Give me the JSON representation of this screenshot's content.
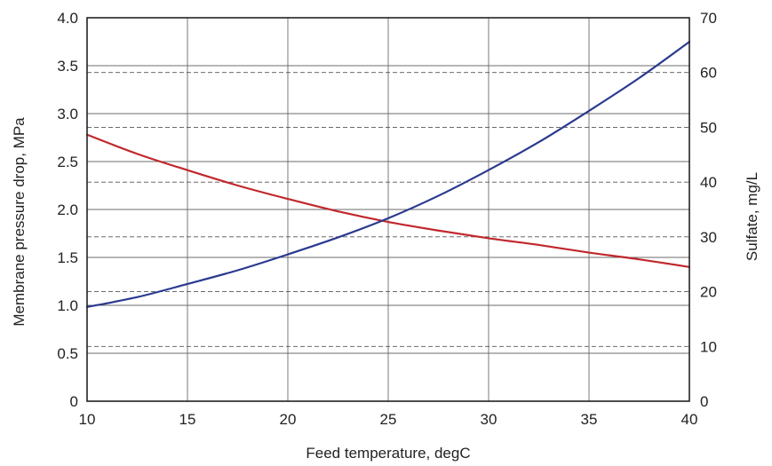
{
  "chart_data": {
    "type": "line",
    "title": "",
    "xlabel": "Feed temperature, degC",
    "ylabel_left": "Membrane pressure drop, MPa",
    "ylabel_right": "Sulfate, mg/L",
    "xlim": [
      10,
      40
    ],
    "ylim_left": [
      0,
      4.0
    ],
    "ylim_right": [
      0,
      70
    ],
    "x_ticks": [
      10,
      15,
      20,
      25,
      30,
      35,
      40
    ],
    "x_tick_labels": [
      "10",
      "15",
      "20",
      "25",
      "30",
      "35",
      "40"
    ],
    "y_left_ticks": [
      0,
      0.5,
      1.0,
      1.5,
      2.0,
      2.5,
      3.0,
      3.5,
      4.0
    ],
    "y_left_tick_labels": [
      "0",
      "0.5",
      "1.0",
      "1.5",
      "2.0",
      "2.5",
      "3.0",
      "3.5",
      "4.0"
    ],
    "y_right_ticks": [
      0,
      10,
      20,
      30,
      40,
      50,
      60,
      70
    ],
    "y_right_tick_labels": [
      "0",
      "10",
      "20",
      "30",
      "40",
      "50",
      "60",
      "70"
    ],
    "grid": true,
    "series": [
      {
        "axis": "left",
        "color": "#c0282d",
        "x": [
          10,
          12.5,
          15,
          17.5,
          20,
          22.5,
          25,
          27.5,
          30,
          32.5,
          35,
          37.5,
          40
        ],
        "y": [
          2.78,
          2.58,
          2.41,
          2.25,
          2.11,
          1.98,
          1.87,
          1.78,
          1.7,
          1.63,
          1.55,
          1.48,
          1.4
        ]
      },
      {
        "axis": "right",
        "color": "#2a3a8f",
        "x": [
          10,
          12.5,
          15,
          17.5,
          20,
          22.5,
          25,
          27.5,
          30,
          32.5,
          35,
          37.5,
          40
        ],
        "y": [
          17.2,
          19.0,
          21.4,
          23.9,
          26.8,
          29.9,
          33.4,
          37.5,
          42.2,
          47.3,
          53.0,
          59.0,
          65.6
        ]
      }
    ]
  }
}
